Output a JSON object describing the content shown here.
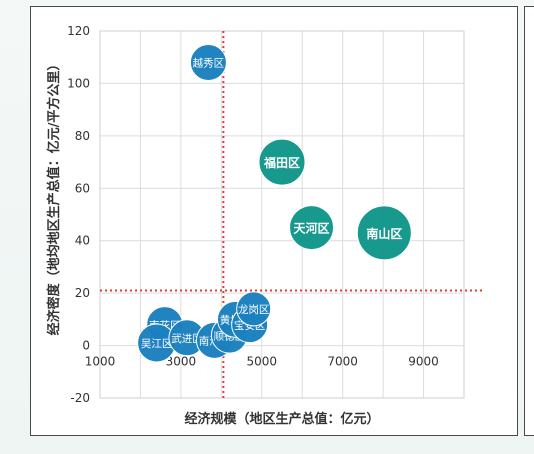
{
  "chart_data": {
    "type": "scatter",
    "xlabel": "经济规模（地区生产总值：亿元）",
    "ylabel": "经济密度（地均地区生产总值：亿元/平方公里）",
    "xlim": [
      1000,
      10000
    ],
    "ylim": [
      -20,
      120
    ],
    "xticks": [
      "1000",
      "3000",
      "5000",
      "7000",
      "9000"
    ],
    "yticks": [
      "-20",
      "0",
      "20",
      "40",
      "60",
      "80",
      "100",
      "120"
    ],
    "reference_lines": {
      "x": 4050,
      "y": 21
    },
    "grid": true,
    "colors": {
      "teal": "#0f968a",
      "blue": "#1a80bf",
      "reference": "#e53935"
    },
    "points": [
      {
        "label": "越秀区",
        "x": 3680,
        "y": 108,
        "size": 18,
        "color": "blue"
      },
      {
        "label": "福田区",
        "x": 5500,
        "y": 70,
        "size": 23,
        "color": "teal"
      },
      {
        "label": "天河区",
        "x": 6230,
        "y": 45,
        "size": 22,
        "color": "teal"
      },
      {
        "label": "南山区",
        "x": 8030,
        "y": 43,
        "size": 27,
        "color": "teal"
      },
      {
        "label": "南花区",
        "x": 2600,
        "y": 8,
        "size": 18,
        "color": "blue"
      },
      {
        "label": "吴江区",
        "x": 2400,
        "y": 1,
        "size": 19,
        "color": "blue"
      },
      {
        "label": "武进区",
        "x": 3150,
        "y": 3,
        "size": 18,
        "color": "blue"
      },
      {
        "label": "南海区",
        "x": 3830,
        "y": 2,
        "size": 18,
        "color": "blue"
      },
      {
        "label": "顺德区",
        "x": 4200,
        "y": 4,
        "size": 18,
        "color": "blue"
      },
      {
        "label": "黄埔区",
        "x": 4350,
        "y": 10,
        "size": 18,
        "color": "blue"
      },
      {
        "label": "宝安区",
        "x": 4700,
        "y": 8,
        "size": 18,
        "color": "blue"
      },
      {
        "label": "龙岗区",
        "x": 4800,
        "y": 14,
        "size": 17,
        "color": "blue"
      }
    ]
  }
}
